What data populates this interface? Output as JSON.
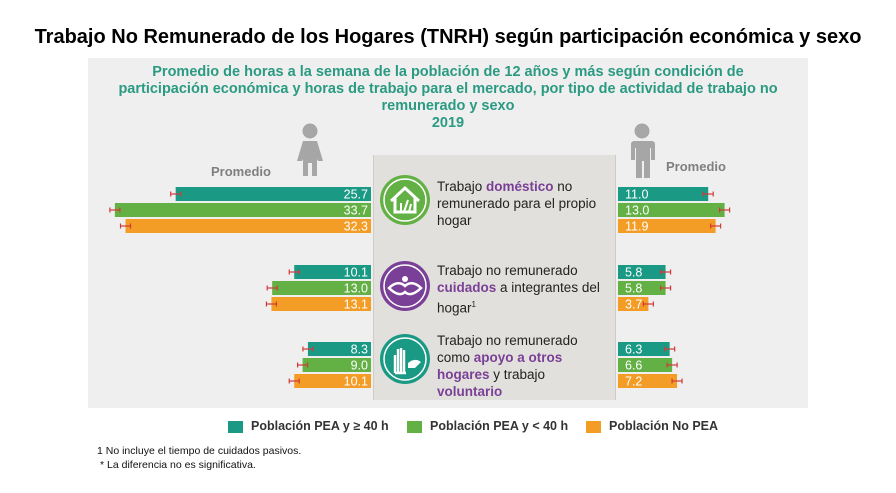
{
  "title": "Trabajo No Remunerado de los Hogares (TNRH) según participación económica y sexo",
  "subtitle": {
    "line1": "Promedio de horas a la semana de la población de 12 años y más según condición de",
    "line2": "participación económica y horas de trabajo para el mercado, por tipo de actividad de trabajo no",
    "line3": "remunerado y sexo",
    "year": "2019"
  },
  "labels": {
    "promedio_left": "Promedio",
    "promedio_right": "Promedio"
  },
  "categories": [
    {
      "parts": [
        "Trabajo ",
        "doméstico",
        " no remunerado para el propio hogar"
      ],
      "sup": ""
    },
    {
      "parts": [
        "Trabajo no remunerado ",
        "cuidados",
        " a integrantes del hogar"
      ],
      "sup": "1"
    },
    {
      "parts": [
        "Trabajo no remunerado como ",
        "apoyo a otros hogares",
        " y trabajo "
      ],
      "highlight2": "voluntario",
      "sup": ""
    }
  ],
  "legend": [
    {
      "label": "Población PEA y ≥ 40 h",
      "color": "#1a9985"
    },
    {
      "label": "Población PEA y < 40 h",
      "color": "#63b045"
    },
    {
      "label": "Población No PEA",
      "color": "#f39c26"
    }
  ],
  "footnotes": [
    "1 No incluye el tiempo de cuidados pasivos.",
    "* La diferencia no es significativa."
  ],
  "chart_data": {
    "type": "bar",
    "orientation": "horizontal-butterfly",
    "title": "Promedio de horas a la semana de la población de 12 años y más según condición de participación económica y horas de trabajo para el mercado, por tipo de actividad de trabajo no remunerado y sexo",
    "year": "2019",
    "categories": [
      "Trabajo doméstico no remunerado para el propio hogar",
      "Trabajo no remunerado cuidados a integrantes del hogar",
      "Trabajo no remunerado como apoyo a otros hogares y trabajo voluntario"
    ],
    "groups": [
      "Mujeres",
      "Hombres"
    ],
    "series": [
      {
        "name": "Población PEA y ≥ 40 h",
        "women": [
          25.7,
          10.1,
          8.3
        ],
        "women_labels": [
          "25.7",
          "10.1",
          "8.3"
        ],
        "men": [
          11.0,
          5.8,
          6.3
        ],
        "men_labels": [
          "11.0",
          "5.8",
          "6.3"
        ]
      },
      {
        "name": "Población PEA y < 40 h",
        "women": [
          33.7,
          13.0,
          9.0
        ],
        "women_labels": [
          "33.7",
          "13.0",
          "9.0"
        ],
        "men": [
          13.0,
          5.8,
          6.6
        ],
        "men_labels": [
          "13.0",
          "5.8",
          "6.6"
        ]
      },
      {
        "name": "Población No PEA",
        "women": [
          32.3,
          13.1,
          10.1
        ],
        "women_labels": [
          "32.3",
          "13.1",
          "10.1"
        ],
        "men": [
          11.9,
          3.7,
          7.2
        ],
        "men_labels": [
          "11.9",
          "3.7",
          "7.2"
        ]
      }
    ],
    "error_bars": true,
    "xlabel": "",
    "ylabel": ""
  }
}
